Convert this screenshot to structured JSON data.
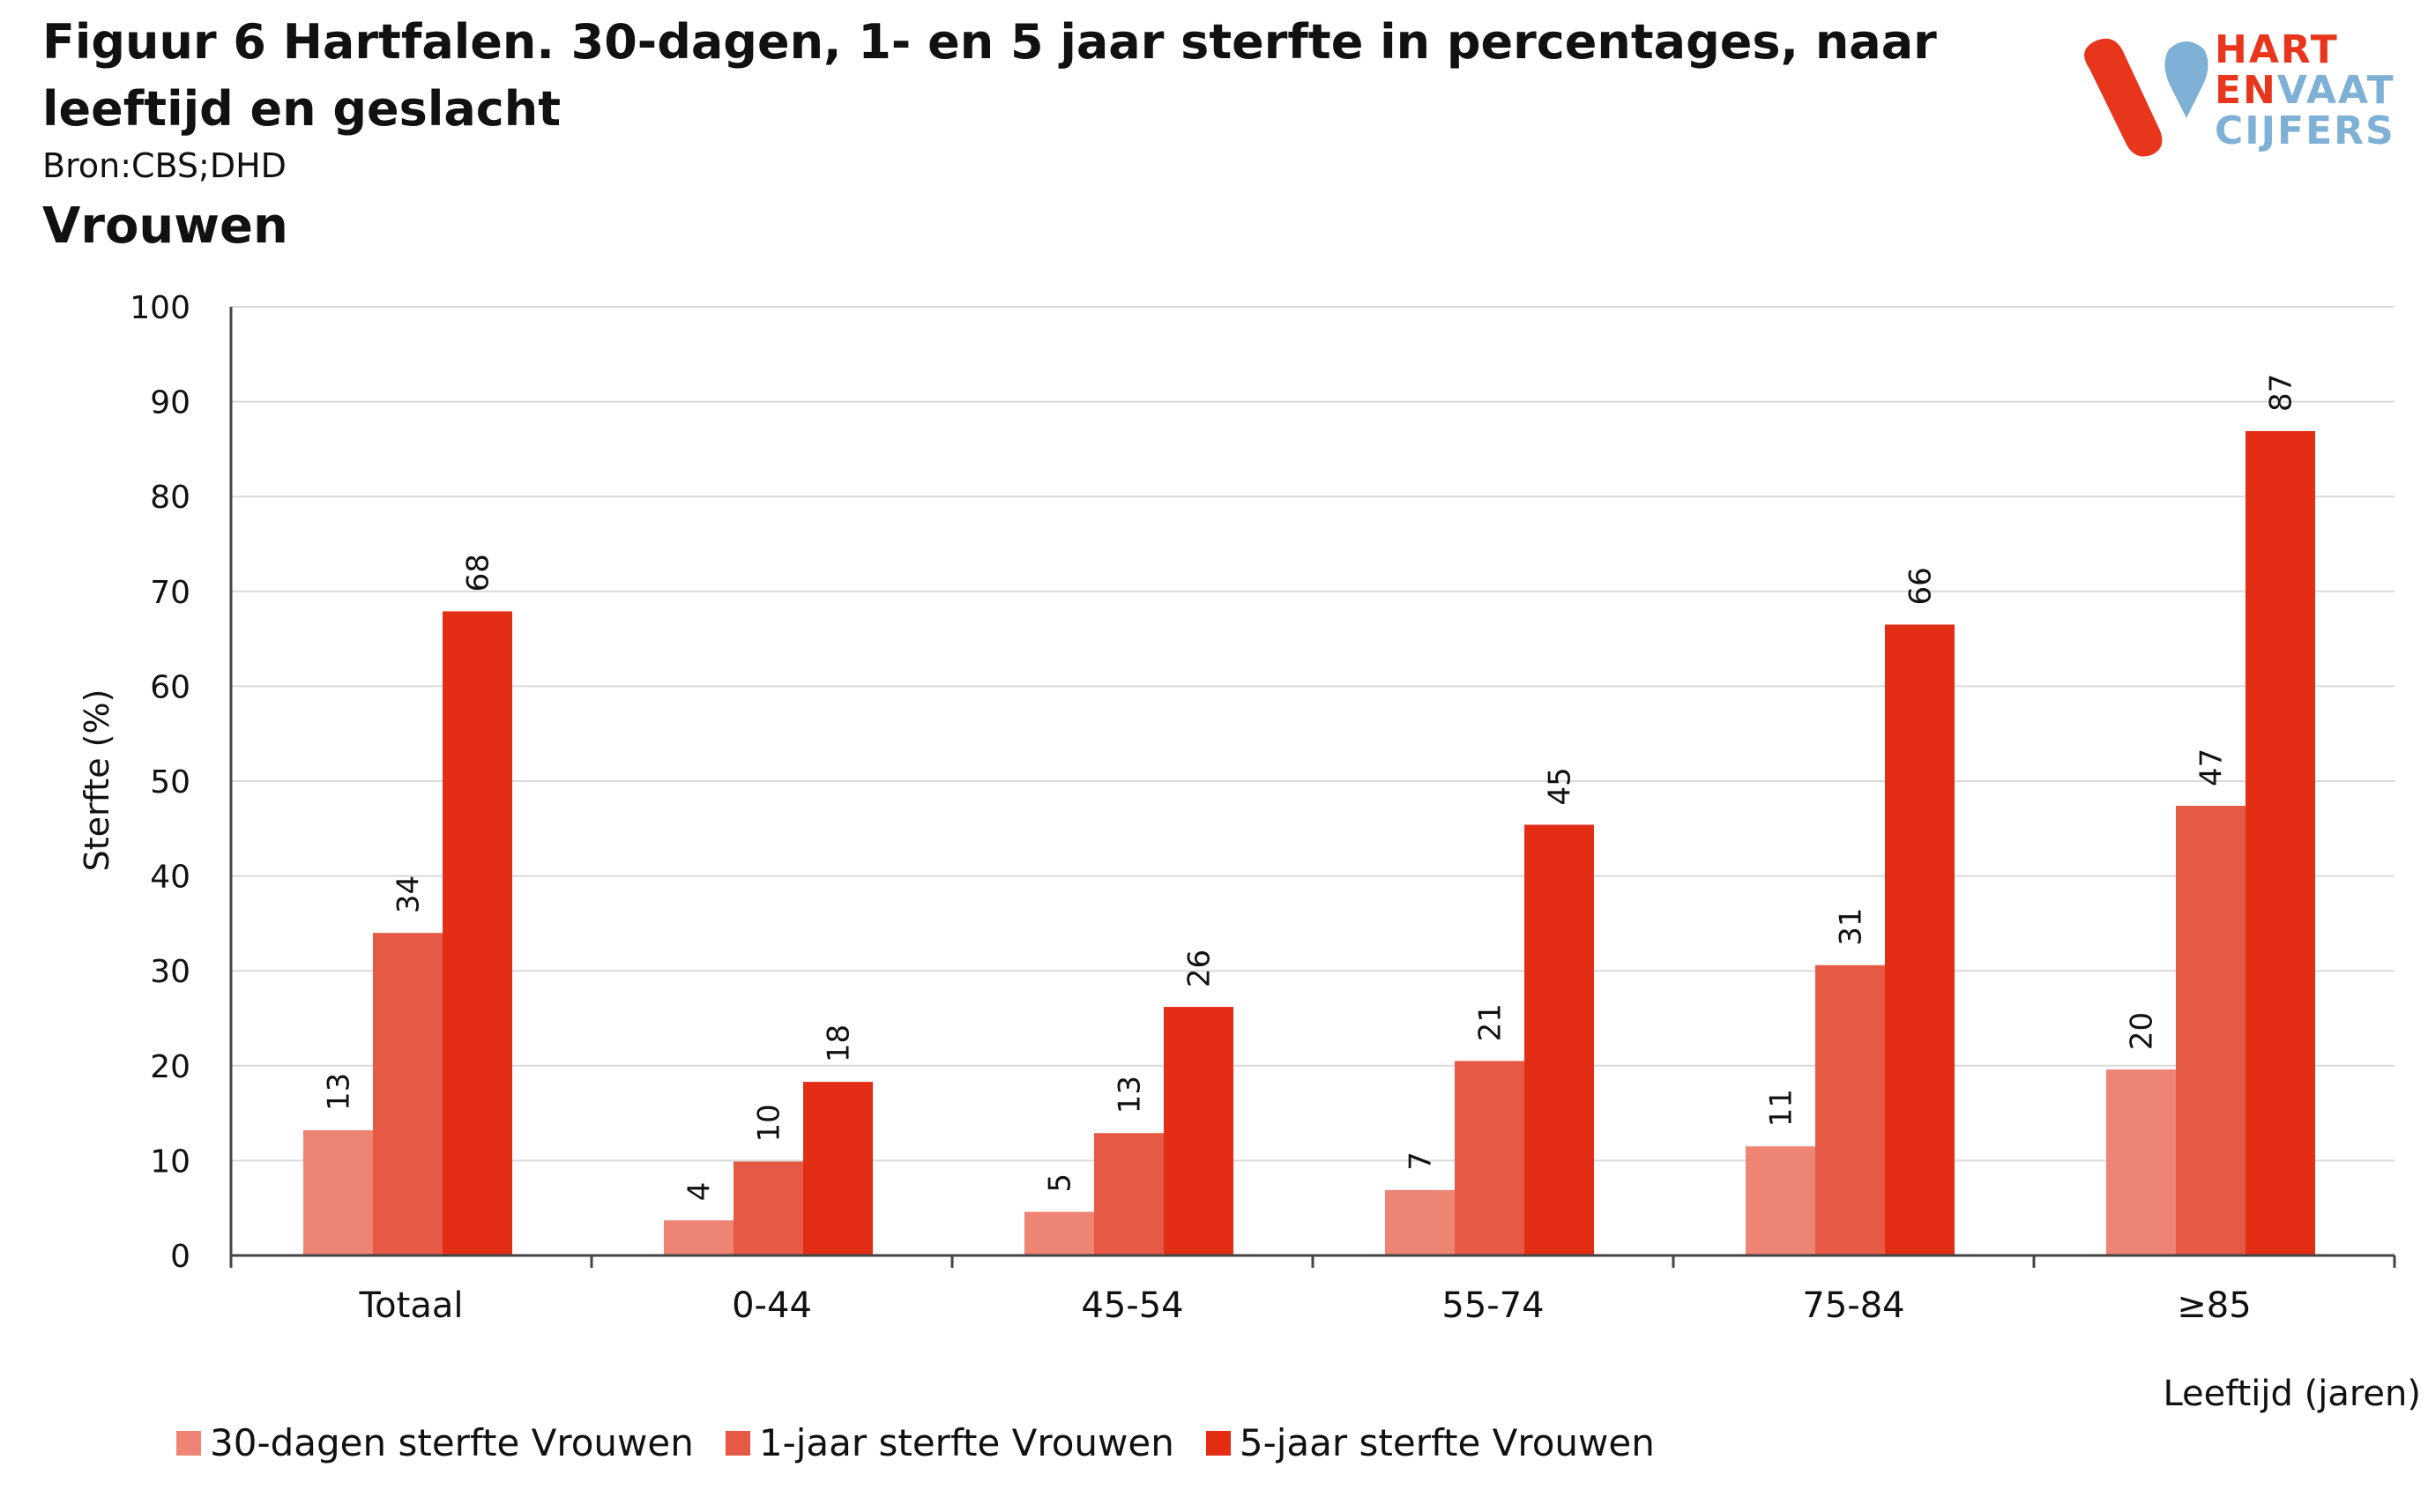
{
  "title": "Figuur 6 Hartfalen. 30-dagen, 1- en 5 jaar sterfte in percentages, naar leeftijd en geslacht",
  "source": "Bron:CBS;DHD",
  "subtitle": "Vrouwen",
  "logo": {
    "line1": "HART",
    "line2a": "EN",
    "line2b": "VAAT",
    "line3": "CIJFERS",
    "colors": {
      "red": "#e8361d",
      "blue": "#7fb0d5"
    }
  },
  "chart_data": {
    "type": "bar",
    "categories": [
      "Totaal",
      "0-44",
      "45-54",
      "55-74",
      "75-84",
      "≥85"
    ],
    "series": [
      {
        "name": "30-dagen sterfte Vrouwen",
        "color": "#ee8474",
        "values": [
          13.2,
          3.7,
          4.6,
          6.9,
          11.5,
          19.6
        ],
        "labels": [
          "13",
          "4",
          "5",
          "7",
          "11",
          "20"
        ]
      },
      {
        "name": "1-jaar sterfte Vrouwen",
        "color": "#e65a45",
        "values": [
          34.0,
          9.9,
          12.9,
          20.5,
          30.6,
          47.4
        ],
        "labels": [
          "34",
          "10",
          "13",
          "21",
          "31",
          "47"
        ]
      },
      {
        "name": "5-jaar sterfte Vrouwen",
        "color": "#e32d14",
        "values": [
          67.9,
          18.3,
          26.2,
          45.4,
          66.5,
          86.9
        ],
        "labels": [
          "68",
          "18",
          "26",
          "45",
          "66",
          "87"
        ]
      }
    ],
    "ylabel": "Sterfte (%)",
    "xlabel": "Leeftijd (jaren)",
    "ylim": [
      0,
      100
    ],
    "yticks": [
      0,
      10,
      20,
      30,
      40,
      50,
      60,
      70,
      80,
      90,
      100
    ],
    "grid": true,
    "legend": "bottom"
  }
}
